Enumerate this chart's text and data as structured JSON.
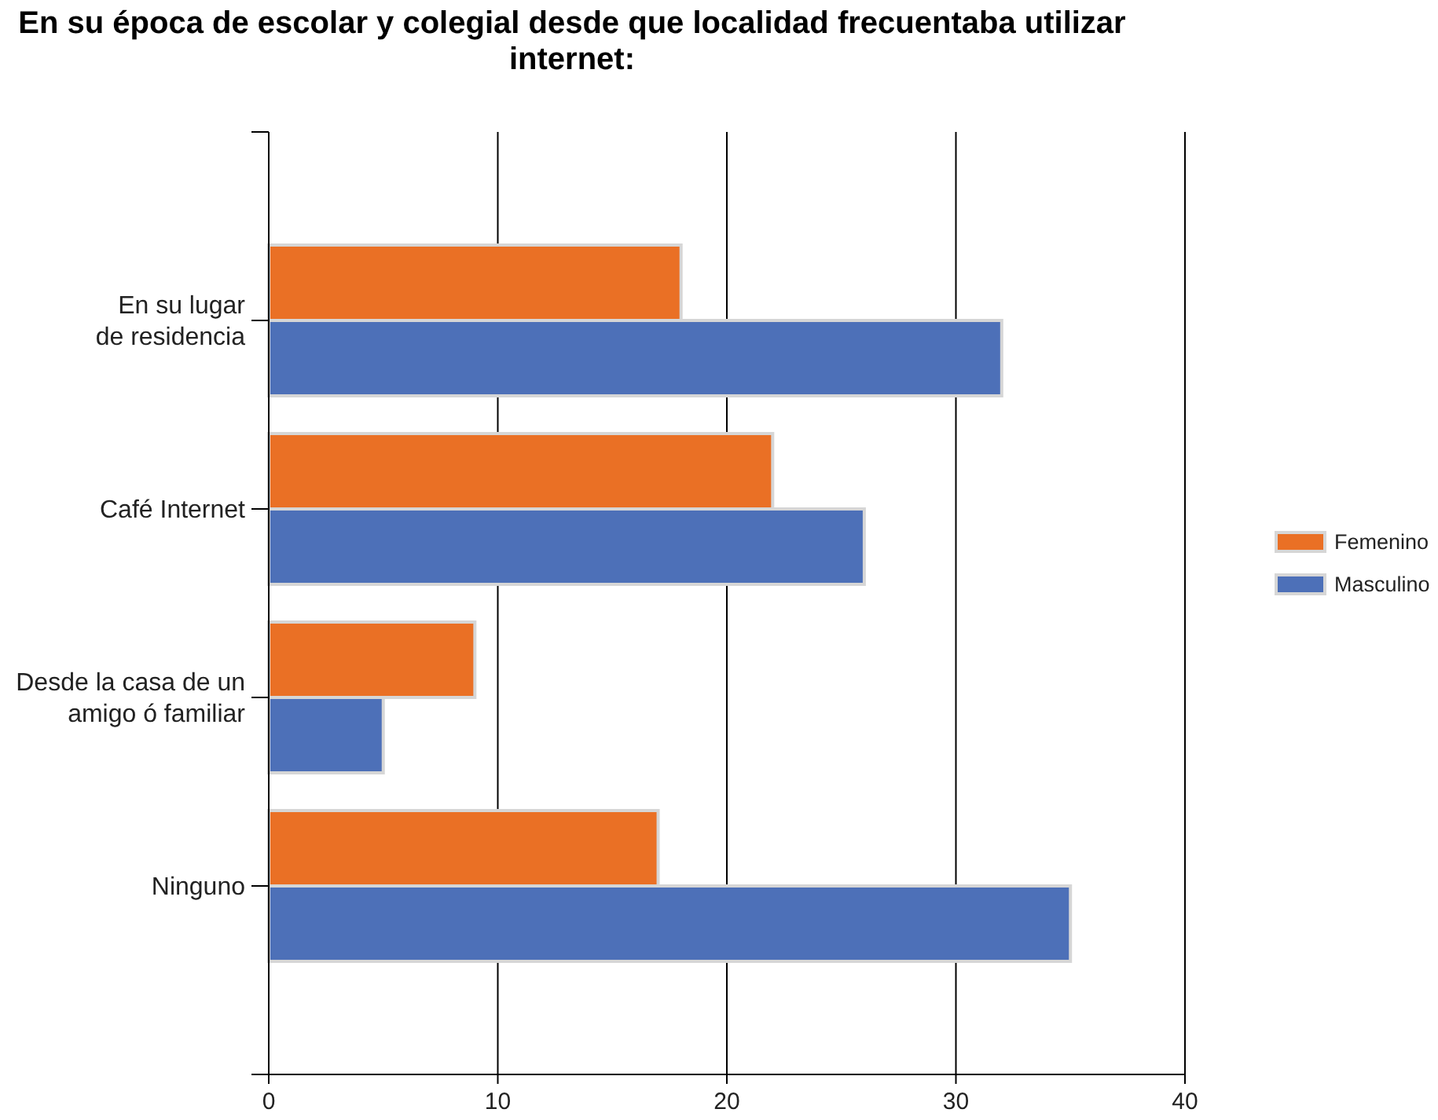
{
  "chart_data": {
    "type": "bar",
    "orientation": "horizontal",
    "title": "En su época de escolar y colegial desde que localidad frecuentaba utilizar internet:",
    "categories": [
      "En su lugar de residencia",
      "Café Internet",
      "Desde la casa de un amigo ó familiar",
      "Ninguno"
    ],
    "series": [
      {
        "name": "Femenino",
        "color": "#ea7025",
        "values": [
          18,
          22,
          9,
          17
        ]
      },
      {
        "name": "Masculino",
        "color": "#4d70b8",
        "values": [
          32,
          26,
          5,
          35
        ]
      }
    ],
    "xlim": [
      0,
      40
    ],
    "xticks": [
      0,
      10,
      20,
      30,
      40
    ],
    "grid": "x",
    "legend": "right"
  }
}
